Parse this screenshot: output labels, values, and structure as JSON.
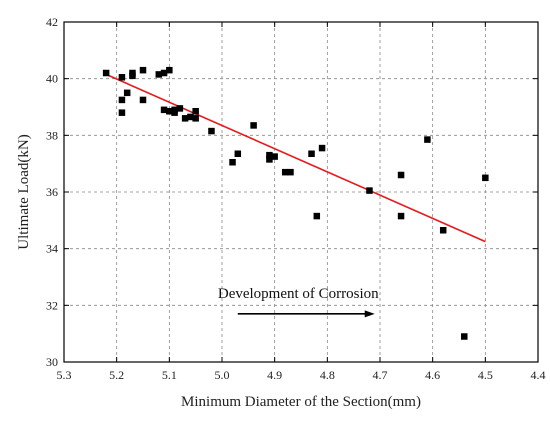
{
  "chart_data": {
    "type": "scatter",
    "xlabel": "Minimum Diameter of the Section(mm)",
    "ylabel": "Ultimate Load(kN)",
    "xlim": [
      5.3,
      4.4
    ],
    "ylim": [
      30,
      42
    ],
    "x_reversed": true,
    "x_ticks": [
      "5.3",
      "5.2",
      "5.1",
      "5.0",
      "4.9",
      "4.8",
      "4.7",
      "4.6",
      "4.5",
      "4.4"
    ],
    "y_ticks": [
      "30",
      "32",
      "34",
      "36",
      "38",
      "40",
      "42"
    ],
    "grid": "dashed",
    "points": [
      {
        "x": 5.22,
        "y": 40.2
      },
      {
        "x": 5.19,
        "y": 40.05
      },
      {
        "x": 5.19,
        "y": 39.25
      },
      {
        "x": 5.19,
        "y": 38.8
      },
      {
        "x": 5.18,
        "y": 39.5
      },
      {
        "x": 5.17,
        "y": 40.2
      },
      {
        "x": 5.17,
        "y": 40.1
      },
      {
        "x": 5.15,
        "y": 40.3
      },
      {
        "x": 5.15,
        "y": 39.25
      },
      {
        "x": 5.12,
        "y": 40.15
      },
      {
        "x": 5.11,
        "y": 40.2
      },
      {
        "x": 5.11,
        "y": 38.9
      },
      {
        "x": 5.1,
        "y": 40.3
      },
      {
        "x": 5.1,
        "y": 38.85
      },
      {
        "x": 5.09,
        "y": 38.9
      },
      {
        "x": 5.09,
        "y": 38.8
      },
      {
        "x": 5.08,
        "y": 38.95
      },
      {
        "x": 5.07,
        "y": 38.6
      },
      {
        "x": 5.06,
        "y": 38.65
      },
      {
        "x": 5.05,
        "y": 38.85
      },
      {
        "x": 5.05,
        "y": 38.6
      },
      {
        "x": 5.02,
        "y": 38.15
      },
      {
        "x": 4.98,
        "y": 37.05
      },
      {
        "x": 4.97,
        "y": 37.35
      },
      {
        "x": 4.94,
        "y": 38.35
      },
      {
        "x": 4.91,
        "y": 37.3
      },
      {
        "x": 4.91,
        "y": 37.15
      },
      {
        "x": 4.9,
        "y": 37.25
      },
      {
        "x": 4.88,
        "y": 36.7
      },
      {
        "x": 4.87,
        "y": 36.7
      },
      {
        "x": 4.83,
        "y": 37.35
      },
      {
        "x": 4.82,
        "y": 35.15
      },
      {
        "x": 4.81,
        "y": 37.55
      },
      {
        "x": 4.72,
        "y": 36.05
      },
      {
        "x": 4.66,
        "y": 36.6
      },
      {
        "x": 4.66,
        "y": 35.15
      },
      {
        "x": 4.61,
        "y": 37.85
      },
      {
        "x": 4.58,
        "y": 34.65
      },
      {
        "x": 4.54,
        "y": 30.9
      },
      {
        "x": 4.5,
        "y": 36.5
      }
    ],
    "fit_line": {
      "x": [
        5.22,
        4.5
      ],
      "y": [
        40.15,
        34.25
      ],
      "color": "#e8191c"
    },
    "annotation": {
      "text": "Development of Corrosion",
      "arrow_x": [
        4.97,
        4.71
      ],
      "arrow_y": 31.7
    },
    "marker_color": "#000000"
  }
}
